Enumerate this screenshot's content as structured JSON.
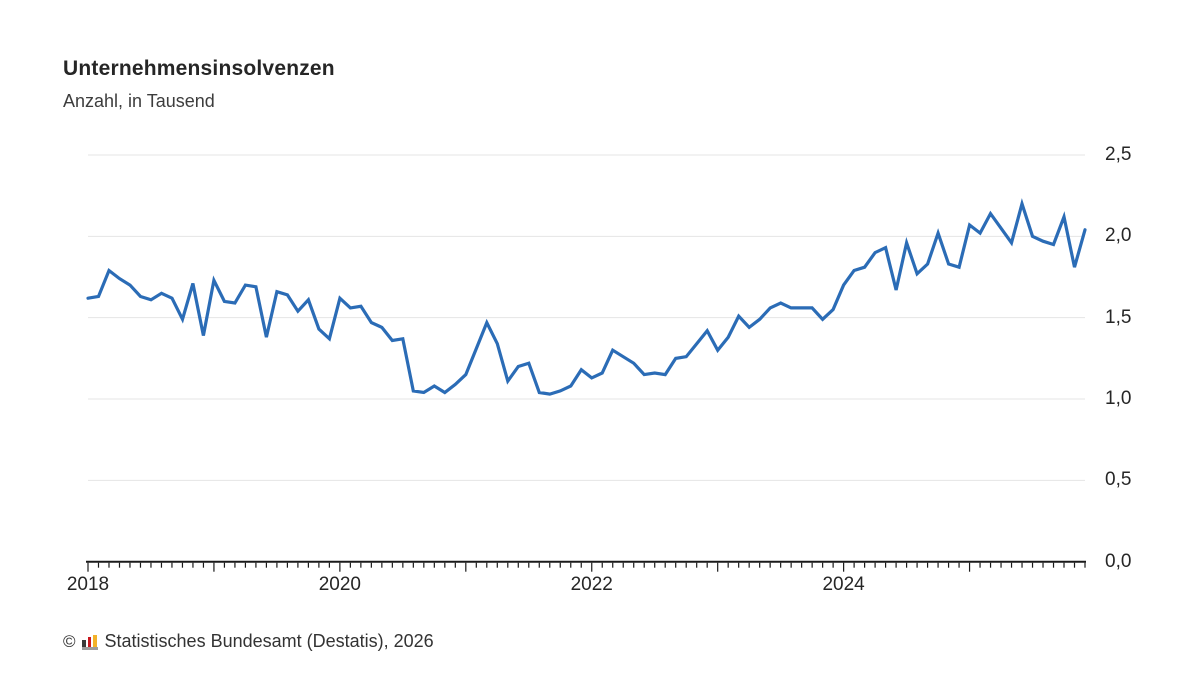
{
  "header": {
    "title": "Unternehmensinsolvenzen",
    "subtitle": "Anzahl, in Tausend"
  },
  "chart_data": {
    "type": "line",
    "title": "Unternehmensinsolvenzen",
    "ylabel": "Anzahl, in Tausend",
    "unit": "Tausend",
    "frequency": "monthly",
    "x_start": "2018-01",
    "x_end": "2025-12",
    "ylim": [
      0,
      2.5
    ],
    "grid": "horizontal",
    "legend": "none",
    "y_tick_values": [
      0,
      0.5,
      1.0,
      1.5,
      2.0,
      2.5
    ],
    "y_tick_labels": [
      "0,0",
      "0,5",
      "1,0",
      "1,5",
      "2,0",
      "2,5"
    ],
    "x_year_labels": [
      "2018",
      "2020",
      "2022",
      "2024"
    ],
    "x_year_label_month_indices": [
      0,
      24,
      48,
      72
    ],
    "minor_tick_interval_months": 1,
    "major_tick_interval_months": 12,
    "series": [
      {
        "name": "Unternehmensinsolvenzen",
        "values": [
          1.62,
          1.63,
          1.79,
          1.74,
          1.7,
          1.63,
          1.61,
          1.65,
          1.62,
          1.49,
          1.71,
          1.39,
          1.73,
          1.6,
          1.59,
          1.7,
          1.69,
          1.38,
          1.66,
          1.64,
          1.54,
          1.61,
          1.43,
          1.37,
          1.62,
          1.56,
          1.57,
          1.47,
          1.44,
          1.36,
          1.37,
          1.05,
          1.04,
          1.08,
          1.04,
          1.09,
          1.15,
          1.31,
          1.47,
          1.34,
          1.11,
          1.2,
          1.22,
          1.04,
          1.03,
          1.05,
          1.08,
          1.18,
          1.13,
          1.16,
          1.3,
          1.26,
          1.22,
          1.15,
          1.16,
          1.15,
          1.25,
          1.26,
          1.34,
          1.42,
          1.3,
          1.38,
          1.51,
          1.44,
          1.49,
          1.56,
          1.59,
          1.56,
          1.56,
          1.56,
          1.49,
          1.55,
          1.7,
          1.79,
          1.81,
          1.9,
          1.93,
          1.67,
          1.96,
          1.77,
          1.83,
          2.02,
          1.83,
          1.81,
          2.07,
          2.02,
          2.14,
          2.05,
          1.96,
          2.2,
          2.0,
          1.97,
          1.95,
          2.12,
          1.81,
          2.04
        ]
      }
    ]
  },
  "footer": {
    "copyright_symbol": "©",
    "logo": "destatis-bar-chart-logo",
    "source": "Statistisches Bundesamt (Destatis), 2026"
  },
  "colors": {
    "line": "#2b6cb6",
    "grid": "#e4e4e4",
    "axis": "#1a1a1a",
    "text": "#262626",
    "logo_black": "#3a3a38",
    "logo_red": "#c8161d",
    "logo_gold": "#f3b229",
    "logo_base": "#9d9d9c"
  }
}
